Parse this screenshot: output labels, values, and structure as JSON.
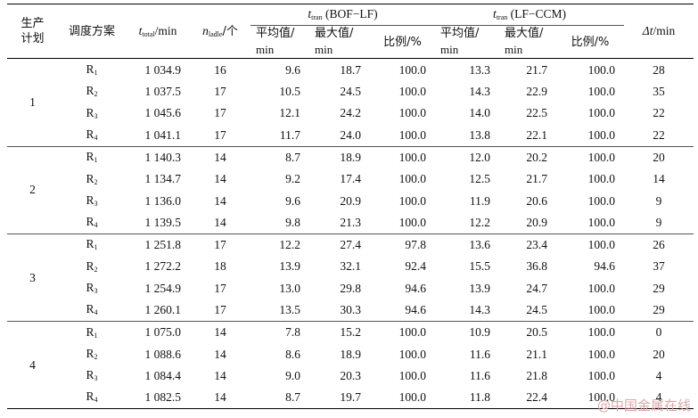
{
  "header": {
    "plan": "生产计划",
    "scheme": "调度方案",
    "ttotal_sym": "t",
    "ttotal_sub": "total",
    "ttotal_unit": "/min",
    "nladle_sym": "n",
    "nladle_sub": "ladle",
    "nladle_unit": "/个",
    "tran_sym": "t",
    "tran_sub": "tran",
    "group1": " (BOF−LF)",
    "group2": " (LF−CCM)",
    "avg_a": "平均值/",
    "avg_b": "min",
    "max_a": "最大值/",
    "max_b": "min",
    "ratio": "比例/%",
    "delta_sym": "Δt",
    "delta_unit": "/min"
  },
  "groups": [
    {
      "plan": "1",
      "rows": [
        {
          "scheme": "R",
          "sub": "1",
          "ttotal": "1 034.9",
          "nladle": "16",
          "bof_avg": "9.6",
          "bof_max": "18.7",
          "bof_ratio": "100.0",
          "lf_avg": "13.3",
          "lf_max": "21.7",
          "lf_ratio": "100.0",
          "delta": "28"
        },
        {
          "scheme": "R",
          "sub": "2",
          "ttotal": "1 037.5",
          "nladle": "17",
          "bof_avg": "10.5",
          "bof_max": "24.5",
          "bof_ratio": "100.0",
          "lf_avg": "14.3",
          "lf_max": "22.9",
          "lf_ratio": "100.0",
          "delta": "35"
        },
        {
          "scheme": "R",
          "sub": "3",
          "ttotal": "1 045.6",
          "nladle": "17",
          "bof_avg": "12.1",
          "bof_max": "24.2",
          "bof_ratio": "100.0",
          "lf_avg": "14.0",
          "lf_max": "22.5",
          "lf_ratio": "100.0",
          "delta": "22"
        },
        {
          "scheme": "R",
          "sub": "4",
          "ttotal": "1 041.1",
          "nladle": "17",
          "bof_avg": "11.7",
          "bof_max": "24.0",
          "bof_ratio": "100.0",
          "lf_avg": "13.8",
          "lf_max": "22.1",
          "lf_ratio": "100.0",
          "delta": "22"
        }
      ]
    },
    {
      "plan": "2",
      "rows": [
        {
          "scheme": "R",
          "sub": "1",
          "ttotal": "1 140.3",
          "nladle": "14",
          "bof_avg": "8.7",
          "bof_max": "18.9",
          "bof_ratio": "100.0",
          "lf_avg": "12.0",
          "lf_max": "20.2",
          "lf_ratio": "100.0",
          "delta": "20"
        },
        {
          "scheme": "R",
          "sub": "2",
          "ttotal": "1 134.7",
          "nladle": "14",
          "bof_avg": "9.2",
          "bof_max": "17.4",
          "bof_ratio": "100.0",
          "lf_avg": "12.5",
          "lf_max": "21.7",
          "lf_ratio": "100.0",
          "delta": "14"
        },
        {
          "scheme": "R",
          "sub": "3",
          "ttotal": "1 136.0",
          "nladle": "14",
          "bof_avg": "9.6",
          "bof_max": "20.9",
          "bof_ratio": "100.0",
          "lf_avg": "11.9",
          "lf_max": "20.6",
          "lf_ratio": "100.0",
          "delta": "9"
        },
        {
          "scheme": "R",
          "sub": "4",
          "ttotal": "1 139.5",
          "nladle": "14",
          "bof_avg": "9.8",
          "bof_max": "21.3",
          "bof_ratio": "100.0",
          "lf_avg": "12.2",
          "lf_max": "20.9",
          "lf_ratio": "100.0",
          "delta": "9"
        }
      ]
    },
    {
      "plan": "3",
      "rows": [
        {
          "scheme": "R",
          "sub": "1",
          "ttotal": "1 251.8",
          "nladle": "17",
          "bof_avg": "12.2",
          "bof_max": "27.4",
          "bof_ratio": "97.8",
          "lf_avg": "13.6",
          "lf_max": "23.4",
          "lf_ratio": "100.0",
          "delta": "26"
        },
        {
          "scheme": "R",
          "sub": "2",
          "ttotal": "1 272.2",
          "nladle": "18",
          "bof_avg": "13.9",
          "bof_max": "32.1",
          "bof_ratio": "92.4",
          "lf_avg": "15.5",
          "lf_max": "36.8",
          "lf_ratio": "94.6",
          "delta": "37"
        },
        {
          "scheme": "R",
          "sub": "3",
          "ttotal": "1 254.9",
          "nladle": "17",
          "bof_avg": "13.0",
          "bof_max": "29.8",
          "bof_ratio": "94.6",
          "lf_avg": "13.9",
          "lf_max": "24.7",
          "lf_ratio": "100.0",
          "delta": "29"
        },
        {
          "scheme": "R",
          "sub": "4",
          "ttotal": "1 260.1",
          "nladle": "17",
          "bof_avg": "13.5",
          "bof_max": "30.3",
          "bof_ratio": "94.6",
          "lf_avg": "14.3",
          "lf_max": "24.5",
          "lf_ratio": "100.0",
          "delta": "29"
        }
      ]
    },
    {
      "plan": "4",
      "rows": [
        {
          "scheme": "R",
          "sub": "1",
          "ttotal": "1 075.0",
          "nladle": "14",
          "bof_avg": "7.8",
          "bof_max": "15.2",
          "bof_ratio": "100.0",
          "lf_avg": "10.9",
          "lf_max": "20.5",
          "lf_ratio": "100.0",
          "delta": "0"
        },
        {
          "scheme": "R",
          "sub": "2",
          "ttotal": "1 088.6",
          "nladle": "14",
          "bof_avg": "8.6",
          "bof_max": "18.9",
          "bof_ratio": "100.0",
          "lf_avg": "11.6",
          "lf_max": "21.1",
          "lf_ratio": "100.0",
          "delta": "20"
        },
        {
          "scheme": "R",
          "sub": "3",
          "ttotal": "1 084.4",
          "nladle": "14",
          "bof_avg": "9.0",
          "bof_max": "20.3",
          "bof_ratio": "100.0",
          "lf_avg": "11.6",
          "lf_max": "21.8",
          "lf_ratio": "100.0",
          "delta": "4"
        },
        {
          "scheme": "R",
          "sub": "4",
          "ttotal": "1 082.5",
          "nladle": "14",
          "bof_avg": "8.7",
          "bof_max": "19.7",
          "bof_ratio": "100.0",
          "lf_avg": "11.8",
          "lf_max": "22.4",
          "lf_ratio": "100.0",
          "delta": "4"
        }
      ]
    }
  ],
  "watermark": "@中国金属在线"
}
